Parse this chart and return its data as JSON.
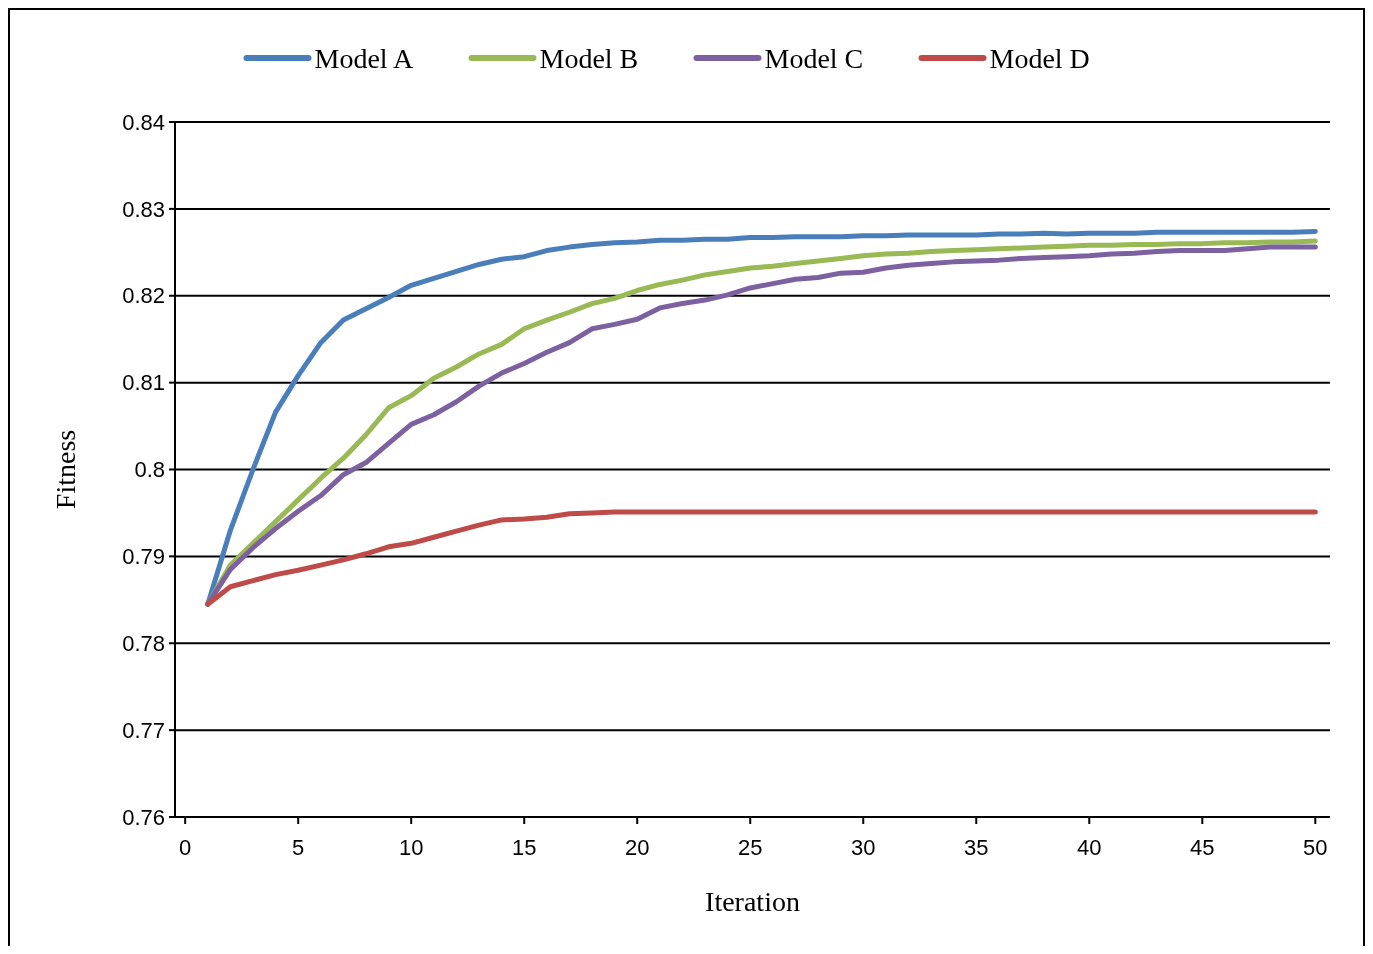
{
  "chart_data": {
    "type": "line",
    "xlabel": "Iteration",
    "ylabel": "Fitness",
    "x": [
      1,
      2,
      3,
      4,
      5,
      6,
      7,
      8,
      9,
      10,
      11,
      12,
      13,
      14,
      15,
      16,
      17,
      18,
      19,
      20,
      21,
      22,
      23,
      24,
      25,
      26,
      27,
      28,
      29,
      30,
      31,
      32,
      33,
      34,
      35,
      36,
      37,
      38,
      39,
      40,
      41,
      42,
      43,
      44,
      45,
      46,
      47,
      48,
      49,
      50
    ],
    "xlim": [
      -0.45,
      50.65
    ],
    "xticks": [
      0,
      5,
      10,
      15,
      20,
      25,
      30,
      35,
      40,
      45,
      50
    ],
    "ylim": [
      0.76,
      0.84
    ],
    "yticks": [
      {
        "value": 0.76,
        "label": "0.76"
      },
      {
        "value": 0.77,
        "label": "0.77"
      },
      {
        "value": 0.78,
        "label": "0.78"
      },
      {
        "value": 0.79,
        "label": "0.79"
      },
      {
        "value": 0.8,
        "label": "0.8"
      },
      {
        "value": 0.81,
        "label": "0.81"
      },
      {
        "value": 0.82,
        "label": "0.82"
      },
      {
        "value": 0.83,
        "label": "0.83"
      },
      {
        "value": 0.84,
        "label": "0.84"
      }
    ],
    "grid": "y",
    "legend": "top",
    "marker": "none",
    "line_style": "solid",
    "series": [
      {
        "name": "Model A",
        "color": "#4a7ebb",
        "values": [
          0.7845,
          0.793,
          0.8,
          0.8066,
          0.8108,
          0.8146,
          0.8172,
          0.8185,
          0.8198,
          0.8212,
          0.822,
          0.8228,
          0.8236,
          0.8242,
          0.8245,
          0.8252,
          0.8256,
          0.8259,
          0.8261,
          0.8262,
          0.8264,
          0.8264,
          0.8265,
          0.8265,
          0.8267,
          0.8267,
          0.8268,
          0.8268,
          0.8268,
          0.8269,
          0.8269,
          0.827,
          0.827,
          0.827,
          0.827,
          0.8271,
          0.8271,
          0.8272,
          0.8271,
          0.8272,
          0.8272,
          0.8272,
          0.8273,
          0.8273,
          0.8273,
          0.8273,
          0.8273,
          0.8273,
          0.8273,
          0.8274
        ]
      },
      {
        "name": "Model B",
        "color": "#98b954",
        "values": [
          0.7845,
          0.789,
          0.7915,
          0.794,
          0.7965,
          0.799,
          0.8013,
          0.804,
          0.8071,
          0.8085,
          0.8105,
          0.8118,
          0.8133,
          0.8144,
          0.8162,
          0.8172,
          0.8181,
          0.8191,
          0.8197,
          0.8206,
          0.8213,
          0.8218,
          0.8224,
          0.8228,
          0.8232,
          0.8234,
          0.8237,
          0.824,
          0.8243,
          0.8246,
          0.8248,
          0.8249,
          0.8251,
          0.8252,
          0.8253,
          0.8254,
          0.8255,
          0.8256,
          0.8257,
          0.8258,
          0.8258,
          0.8259,
          0.8259,
          0.826,
          0.826,
          0.8261,
          0.8261,
          0.8262,
          0.8262,
          0.8263
        ]
      },
      {
        "name": "Model C",
        "color": "#7d60a0",
        "values": [
          0.7845,
          0.7885,
          0.791,
          0.7932,
          0.7952,
          0.797,
          0.7994,
          0.8008,
          0.803,
          0.8052,
          0.8063,
          0.8078,
          0.8096,
          0.8111,
          0.8122,
          0.8135,
          0.8146,
          0.8162,
          0.8167,
          0.8173,
          0.8186,
          0.8191,
          0.8195,
          0.8201,
          0.8209,
          0.8214,
          0.8219,
          0.8221,
          0.8226,
          0.8227,
          0.8232,
          0.8235,
          0.8237,
          0.8239,
          0.824,
          0.8241,
          0.8243,
          0.8244,
          0.8245,
          0.8246,
          0.8248,
          0.8249,
          0.8251,
          0.8252,
          0.8252,
          0.8252,
          0.8254,
          0.8256,
          0.8256,
          0.8256
        ]
      },
      {
        "name": "Model D",
        "color": "#be4b48",
        "values": [
          0.7845,
          0.7865,
          0.7872,
          0.7879,
          0.7884,
          0.789,
          0.7896,
          0.7903,
          0.7911,
          0.7915,
          0.7922,
          0.7929,
          0.7936,
          0.7942,
          0.7943,
          0.7945,
          0.7949,
          0.795,
          0.7951,
          0.7951,
          0.7951,
          0.7951,
          0.7951,
          0.7951,
          0.7951,
          0.7951,
          0.7951,
          0.7951,
          0.7951,
          0.7951,
          0.7951,
          0.7951,
          0.7951,
          0.7951,
          0.7951,
          0.7951,
          0.7951,
          0.7951,
          0.7951,
          0.7951,
          0.7951,
          0.7951,
          0.7951,
          0.7951,
          0.7951,
          0.7951,
          0.7951,
          0.7951,
          0.7951,
          0.7951
        ]
      }
    ]
  }
}
